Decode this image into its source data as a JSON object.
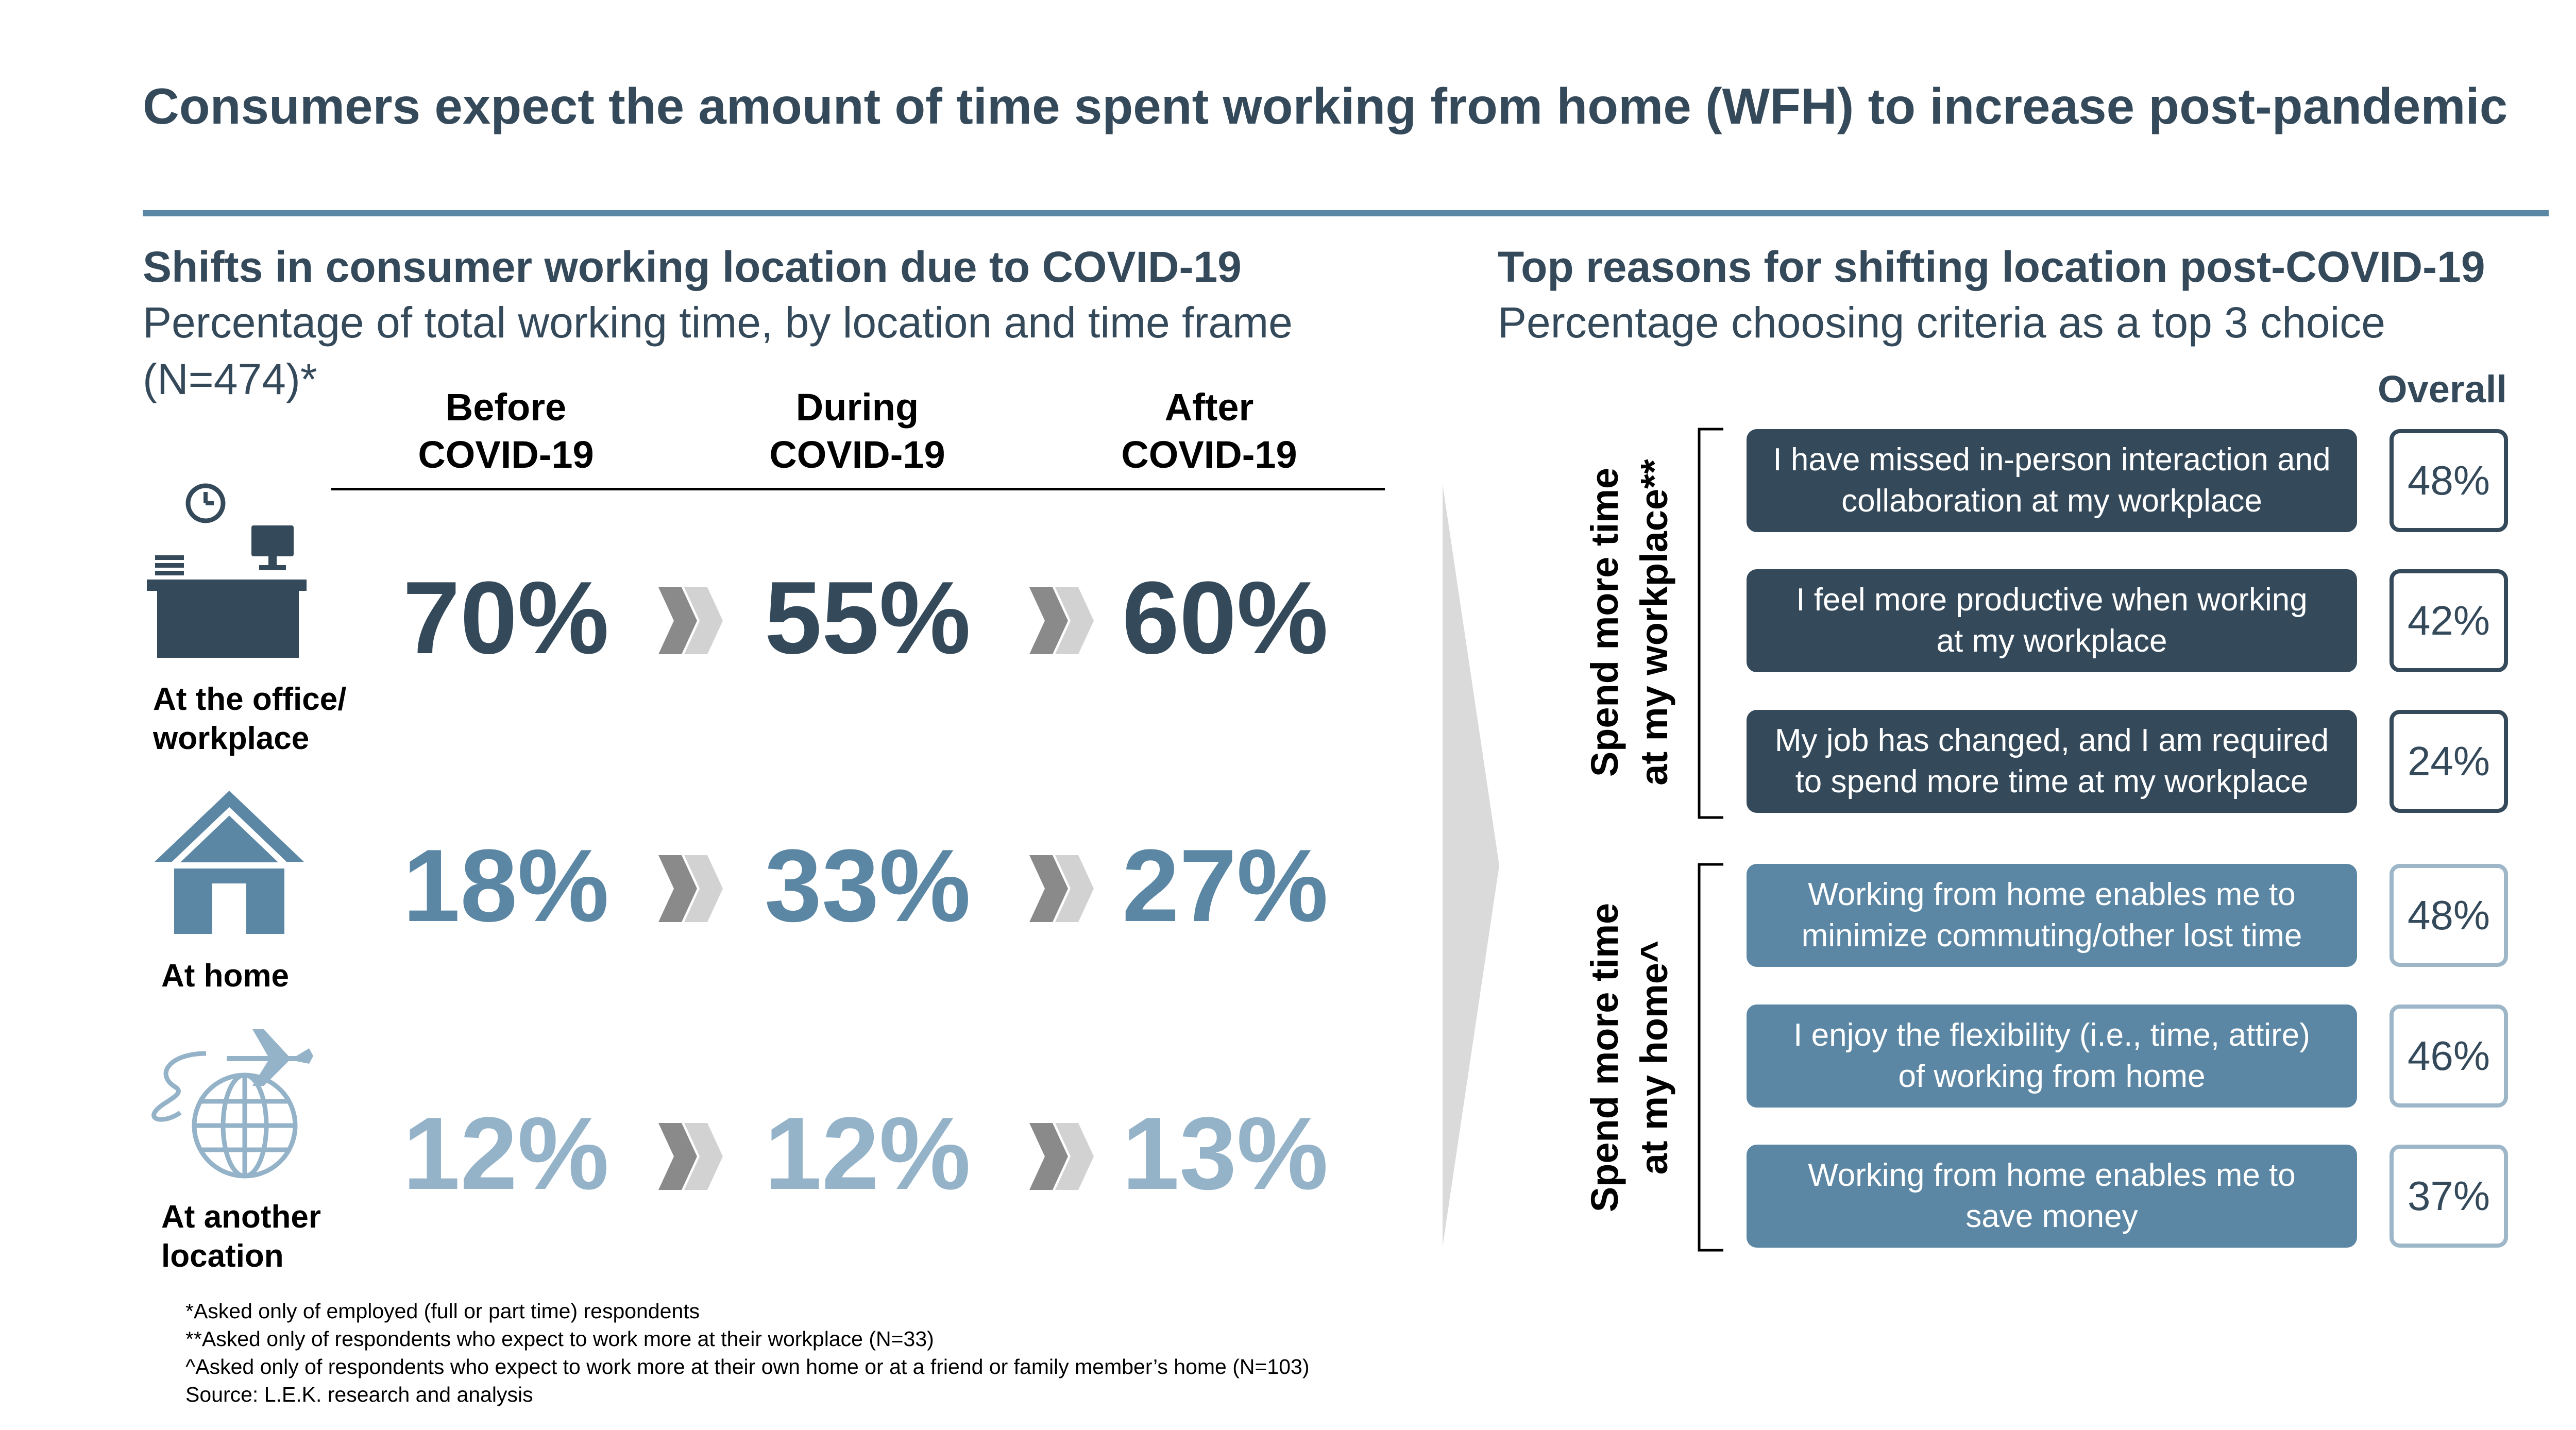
{
  "title": "Consumers expect the amount of time spent working from home (WFH) to increase post-pandemic",
  "left_panel": {
    "heading": "Shifts in consumer working location due to COVID-19",
    "subtitle_line1": "Percentage of total working time, by location and time frame",
    "subtitle_line2": "(N=474)*",
    "columns": [
      {
        "line1": "Before",
        "line2": "COVID-19"
      },
      {
        "line1": "During",
        "line2": "COVID-19"
      },
      {
        "line1": "After",
        "line2": "COVID-19"
      }
    ],
    "rows": [
      {
        "label_line1": "At the office/",
        "label_line2": "workplace",
        "icon": "office-desk-icon",
        "color": "#34495a",
        "values": [
          "70%",
          "55%",
          "60%"
        ]
      },
      {
        "label_line1": "At home",
        "label_line2": "",
        "icon": "house-icon",
        "color": "#5b87a4",
        "values": [
          "18%",
          "33%",
          "27%"
        ]
      },
      {
        "label_line1": "At another",
        "label_line2": "location",
        "icon": "globe-plane-icon",
        "color": "#94b3c8",
        "values": [
          "12%",
          "12%",
          "13%"
        ]
      }
    ]
  },
  "right_panel": {
    "heading": "Top reasons for shifting location post-COVID-19",
    "subtitle": "Percentage choosing criteria as a top 3 choice",
    "overall_label": "Overall",
    "groups": [
      {
        "label_line1": "Spend more time",
        "label_line2": "at my workplace**",
        "color": "#34495a",
        "reasons": [
          {
            "line1": "I have missed in-person interaction and",
            "line2": "collaboration at my workplace",
            "value": "48%"
          },
          {
            "line1": "I feel more productive when working",
            "line2": "at my workplace",
            "value": "42%"
          },
          {
            "line1": "My job has changed, and I am required",
            "line2": "to spend more time at my workplace",
            "value": "24%"
          }
        ]
      },
      {
        "label_line1": "Spend more time",
        "label_line2": "at my home^",
        "color": "#5b87a4",
        "reasons": [
          {
            "line1": "Working from home enables me to",
            "line2": "minimize commuting/other lost time",
            "value": "48%"
          },
          {
            "line1": "I enjoy the flexibility (i.e., time, attire)",
            "line2": "of working from home",
            "value": "46%"
          },
          {
            "line1": "Working from home enables me to",
            "line2": "save money",
            "value": "37%"
          }
        ]
      }
    ]
  },
  "footnotes": [
    "*Asked only of employed (full or part time) respondents",
    "**Asked only of respondents who expect to work more at their workplace (N=33)",
    "^Asked only of respondents who expect to work more at their own home or at a friend or family member’s home (N=103)",
    "Source: L.E.K. research and analysis"
  ],
  "chart_data": [
    {
      "type": "table",
      "title": "Shifts in consumer working location due to COVID-19",
      "subtitle": "Percentage of total working time, by location and time frame (N=474)*",
      "categories": [
        "Before COVID-19",
        "During COVID-19",
        "After COVID-19"
      ],
      "series": [
        {
          "name": "At the office/workplace",
          "values": [
            70,
            55,
            60
          ]
        },
        {
          "name": "At home",
          "values": [
            18,
            33,
            27
          ]
        },
        {
          "name": "At another location",
          "values": [
            12,
            12,
            13
          ]
        }
      ],
      "unit": "%"
    },
    {
      "type": "table",
      "title": "Top reasons for shifting location post-COVID-19",
      "subtitle": "Percentage choosing criteria as a top 3 choice",
      "categories": [
        "I have missed in-person interaction and collaboration at my workplace",
        "I feel more productive when working at my workplace",
        "My job has changed, and I am required to spend more time at my workplace",
        "Working from home enables me to minimize commuting/other lost time",
        "I enjoy the flexibility (i.e., time, attire) of working from home",
        "Working from home enables me to save money"
      ],
      "series": [
        {
          "name": "Overall",
          "values": [
            48,
            42,
            24,
            48,
            46,
            37
          ]
        }
      ],
      "unit": "%"
    }
  ]
}
